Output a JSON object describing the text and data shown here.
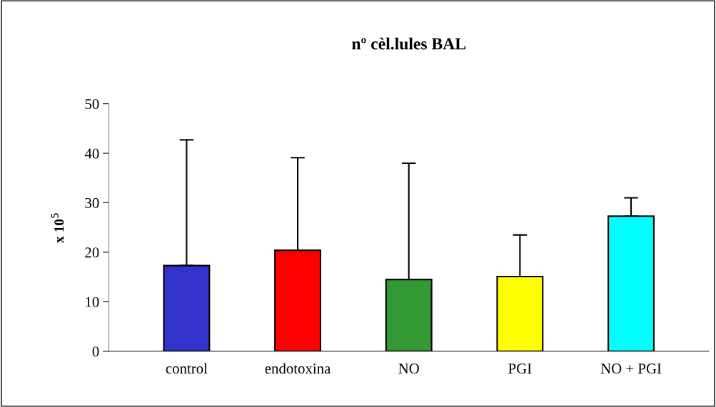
{
  "chart_data": {
    "type": "bar",
    "title": "nº cèl.lules BAL",
    "ylabel": "x 10$^{5}$",
    "categories": [
      "control",
      "endotoxina",
      "NO",
      "PGI",
      "NO + PGI"
    ],
    "values": [
      17.3,
      20.4,
      14.5,
      15.1,
      27.3
    ],
    "colors": [
      "#3333cc",
      "#ff0000",
      "#339933",
      "#ffff00",
      "#00ffff"
    ],
    "errors": [
      [
        17.3,
        42.7
      ],
      [
        20.4,
        39.1
      ],
      [
        14.5,
        38.0
      ],
      [
        15.1,
        23.5
      ],
      [
        27.3,
        31.0
      ]
    ],
    "ylim": [
      0,
      50
    ],
    "yticks": [
      0,
      10,
      20,
      30,
      40,
      50
    ],
    "grid": false,
    "legend": false
  }
}
